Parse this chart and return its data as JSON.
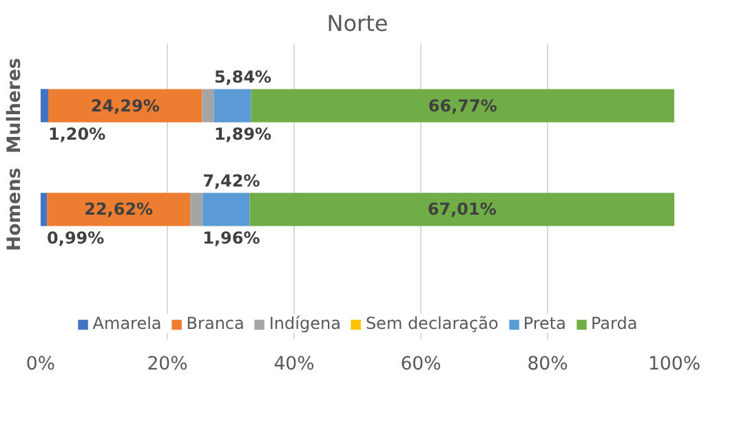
{
  "chart_data": {
    "type": "bar",
    "orientation": "horizontal",
    "stacked": true,
    "title": "Norte",
    "categories": [
      "Mulheres",
      "Homens"
    ],
    "series": [
      {
        "name": "Amarela",
        "color": "#4472c4",
        "values": [
          1.2,
          0.99
        ],
        "value_labels": [
          "1,20%",
          "0,99%"
        ]
      },
      {
        "name": "Branca",
        "color": "#ed7d31",
        "values": [
          24.29,
          22.62
        ],
        "value_labels": [
          "24,29%",
          "22,62%"
        ]
      },
      {
        "name": "Indígena",
        "color": "#a5a5a5",
        "values": [
          1.89,
          1.96
        ],
        "value_labels": [
          "1,89%",
          "1,96%"
        ]
      },
      {
        "name": "Sem declaração",
        "color": "#ffc000",
        "values": [
          null,
          null
        ]
      },
      {
        "name": "Preta",
        "color": "#5b9bd5",
        "values": [
          5.84,
          7.42
        ],
        "value_labels": [
          "5,84%",
          "7,42%"
        ]
      },
      {
        "name": "Parda",
        "color": "#70ad47",
        "values": [
          66.77,
          67.01
        ],
        "value_labels": [
          "66,77%",
          "67,01%"
        ]
      }
    ],
    "xlim": [
      0,
      100
    ],
    "xticks": [
      {
        "value": 0,
        "label": "0%"
      },
      {
        "value": 20,
        "label": "20%"
      },
      {
        "value": 40,
        "label": "40%"
      },
      {
        "value": 60,
        "label": "60%"
      },
      {
        "value": 80,
        "label": "80%"
      },
      {
        "value": 100,
        "label": "100%"
      }
    ],
    "grid": "x",
    "legend": "bottom"
  }
}
